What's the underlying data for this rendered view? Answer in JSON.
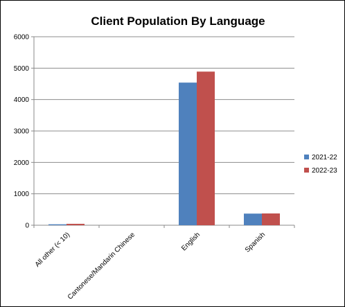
{
  "chart_data": {
    "type": "bar",
    "title": "Client Population By Language",
    "categories": [
      "All other (< 10)",
      "Cantonese/Mandarin Chinese",
      "English",
      "Spanish"
    ],
    "series": [
      {
        "name": "2021-22",
        "color": "#4F81BD",
        "values": [
          30,
          0,
          4540,
          370
        ]
      },
      {
        "name": "2022-23",
        "color": "#C0504D",
        "values": [
          45,
          0,
          4890,
          375
        ]
      }
    ],
    "ylim": [
      0,
      6000
    ],
    "yticks": [
      "0",
      "1000",
      "2000",
      "3000",
      "4000",
      "5000",
      "6000"
    ],
    "grid": true,
    "legend_position": "right"
  }
}
